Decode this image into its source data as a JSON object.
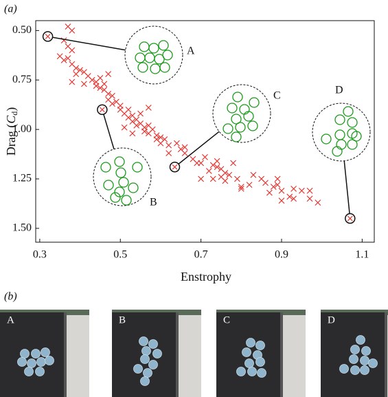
{
  "chart_data": {
    "type": "scatter",
    "panel_label": "(a)",
    "xlabel": "Enstrophy",
    "ylabel_parts": [
      "Drag (",
      "C",
      "d",
      ")"
    ],
    "color": "#e8302a",
    "y_inverted": true,
    "xlim": [
      0.29,
      1.13
    ],
    "xticks": [
      0.3,
      0.5,
      0.7,
      0.9,
      1.1
    ],
    "ylim": [
      0.45,
      1.57
    ],
    "yticks": [
      {
        "value": 0.5,
        "label": "0.50"
      },
      {
        "value": 0.75,
        "label": "0.75"
      },
      {
        "value": 1,
        "label": "1.00"
      },
      {
        "value": 1.25,
        "label": "1.25"
      },
      {
        "value": 1.5,
        "label": "1.50"
      }
    ],
    "x": [
      0.37,
      0.38,
      0.36,
      0.37,
      0.38,
      0.35,
      0.36,
      0.37,
      0.38,
      0.39,
      0.4,
      0.39,
      0.38,
      0.41,
      0.42,
      0.43,
      0.44,
      0.44,
      0.45,
      0.45,
      0.46,
      0.46,
      0.47,
      0.47,
      0.48,
      0.48,
      0.49,
      0.5,
      0.5,
      0.51,
      0.52,
      0.52,
      0.53,
      0.53,
      0.54,
      0.54,
      0.55,
      0.55,
      0.56,
      0.56,
      0.57,
      0.57,
      0.58,
      0.59,
      0.59,
      0.6,
      0.6,
      0.61,
      0.62,
      0.51,
      0.53,
      0.57,
      0.47,
      0.41,
      0.62,
      0.64,
      0.65,
      0.66,
      0.68,
      0.69,
      0.7,
      0.71,
      0.72,
      0.73,
      0.74,
      0.75,
      0.76,
      0.77,
      0.78,
      0.79,
      0.7,
      0.73,
      0.75,
      0.76,
      0.8,
      0.8,
      0.82,
      0.83,
      0.85,
      0.86,
      0.87,
      0.88,
      0.89,
      0.89,
      0.9,
      0.9,
      0.92,
      0.93,
      0.93,
      0.95,
      0.97,
      0.97,
      0.99,
      0.66,
      0.74
    ],
    "values": [
      0.48,
      0.5,
      0.55,
      0.58,
      0.6,
      0.63,
      0.65,
      0.64,
      0.67,
      0.69,
      0.7,
      0.72,
      0.76,
      0.71,
      0.73,
      0.75,
      0.76,
      0.78,
      0.79,
      0.74,
      0.77,
      0.8,
      0.82,
      0.85,
      0.83,
      0.87,
      0.86,
      0.88,
      0.9,
      0.92,
      0.9,
      0.94,
      0.93,
      0.96,
      0.95,
      0.98,
      0.97,
      0.92,
      0.99,
      1.01,
      0.98,
      1.02,
      1.0,
      1.03,
      1.05,
      1.04,
      1.07,
      1.05,
      1.08,
      0.99,
      1.02,
      0.89,
      0.72,
      0.77,
      1.12,
      1.07,
      1.1,
      1.12,
      1.15,
      1.17,
      1.17,
      1.14,
      1.21,
      1.18,
      1.16,
      1.2,
      1.22,
      1.23,
      1.17,
      1.25,
      1.25,
      1.25,
      1.24,
      1.26,
      1.3,
      1.29,
      1.28,
      1.23,
      1.25,
      1.27,
      1.32,
      1.29,
      1.25,
      1.28,
      1.31,
      1.36,
      1.34,
      1.3,
      1.35,
      1.31,
      1.31,
      1.35,
      1.37,
      1.09,
      1.19
    ],
    "annotations": [
      {
        "label": "A",
        "x": 0.32,
        "y": 0.53
      },
      {
        "label": "B",
        "x": 0.455,
        "y": 0.9
      },
      {
        "label": "C",
        "x": 0.635,
        "y": 1.19
      },
      {
        "label": "D",
        "x": 1.07,
        "y": 1.45
      }
    ]
  },
  "photos": {
    "panel_label": "(b)",
    "labels": [
      "A",
      "B",
      "C",
      "D"
    ]
  }
}
